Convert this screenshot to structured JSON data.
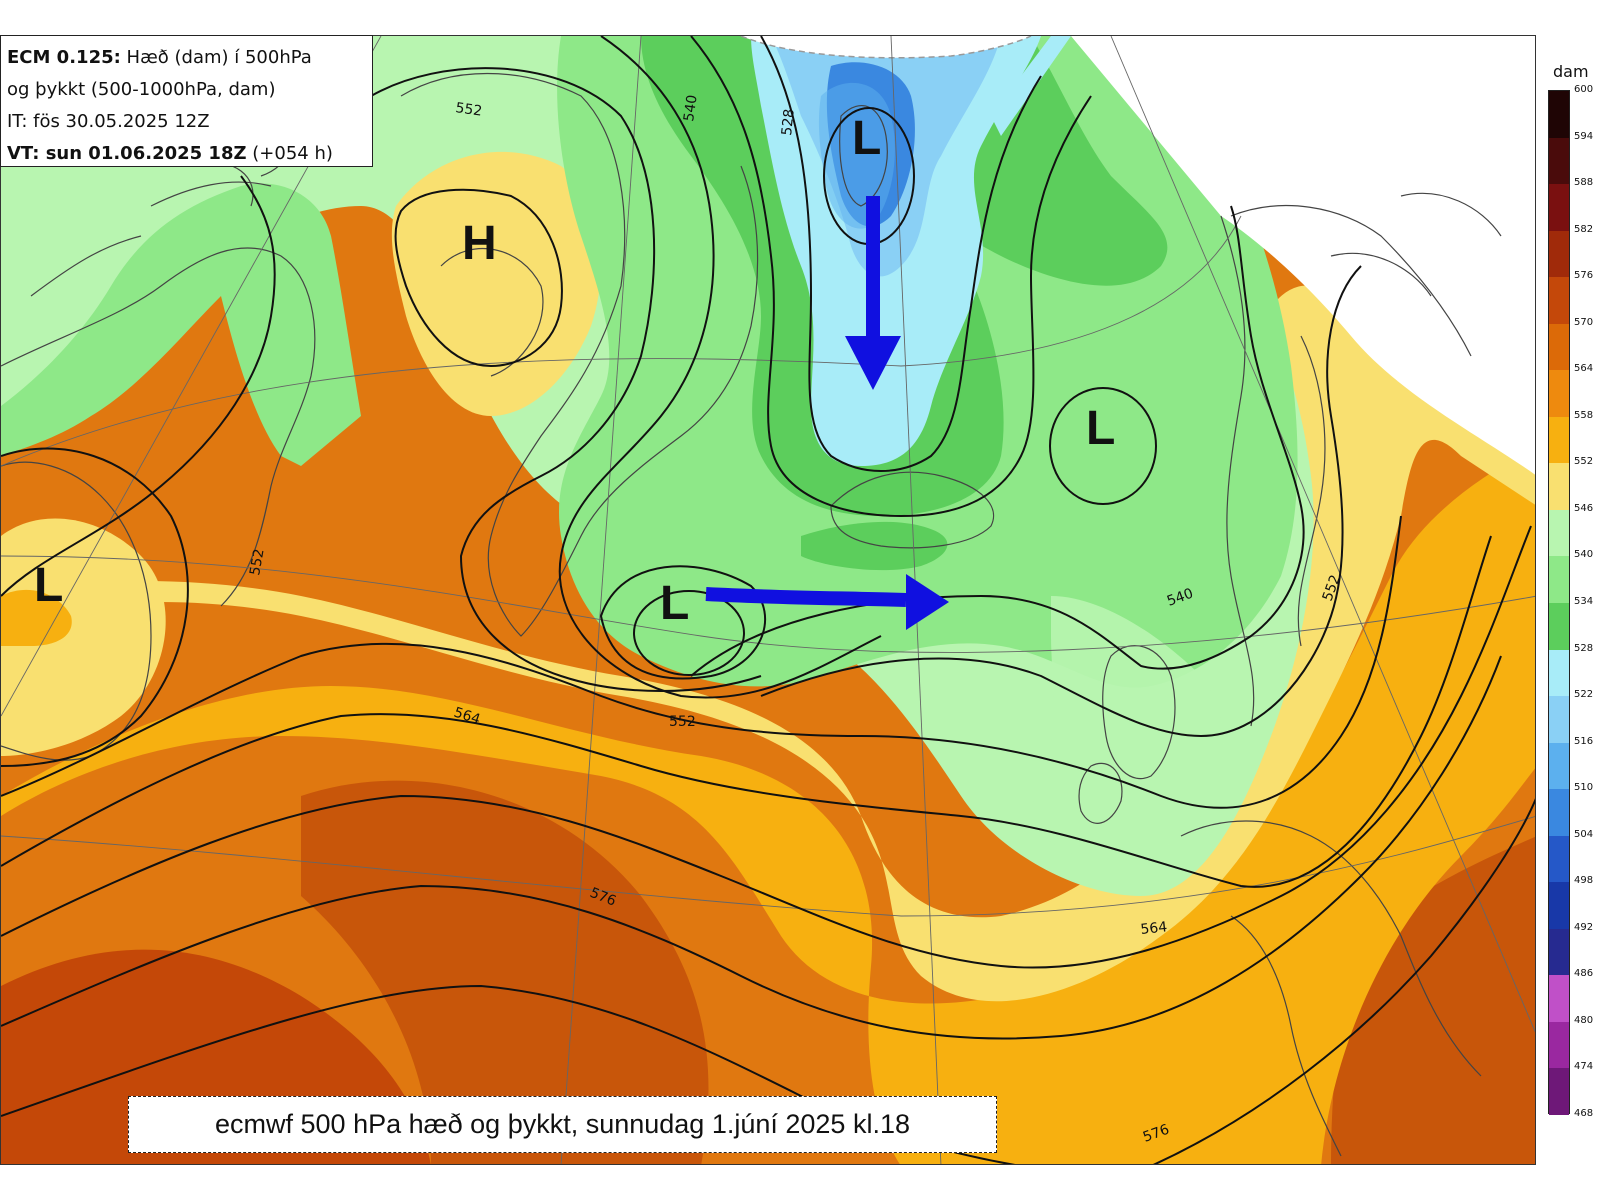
{
  "info_box": {
    "line1_bold": "ECM 0.125:",
    "line1_rest": " Hæð (dam) í 500hPa",
    "line2": "og þykkt (500-1000hPa, dam)",
    "line3": "IT: fös 30.05.2025 12Z",
    "line4_bold": "VT: sun 01.06.2025 18Z",
    "line4_rest": " (+054 h)"
  },
  "caption": "ecmwf 500 hPa hæð og þykkt, sunnudag  1.júní 2025 kl.18",
  "colorbar": {
    "unit": "dam",
    "ticks": [
      "600",
      "594",
      "588",
      "582",
      "576",
      "570",
      "564",
      "558",
      "552",
      "546",
      "540",
      "534",
      "528",
      "522",
      "516",
      "510",
      "504",
      "498",
      "492",
      "486",
      "480",
      "474",
      "468"
    ],
    "colors": [
      "#1f0505",
      "#4a0b0b",
      "#7a1010",
      "#a02a0a",
      "#c4480a",
      "#dc6a08",
      "#ee8a0e",
      "#f7b010",
      "#f9e070",
      "#b8f5b0",
      "#8ee888",
      "#5cce5c",
      "#a8ecf8",
      "#8ad0f5",
      "#5cb0ee",
      "#3a88e0",
      "#2558c8",
      "#1838a8",
      "#262a90",
      "#c050c8",
      "#9a28a0",
      "#6e1878"
    ]
  },
  "centers": {
    "h1": "H",
    "l1": "L",
    "l2": "L",
    "l3": "L",
    "l4": "L"
  },
  "isolines": {
    "a": "552",
    "b": "540",
    "c": "528",
    "d": "552",
    "e": "552",
    "f": "564",
    "g": "540",
    "h": "552",
    "i": "576",
    "j": "564",
    "k": "576"
  },
  "colors": {
    "arrow": "#1010e0",
    "contour": "#111111",
    "land_outline": "#444444"
  }
}
